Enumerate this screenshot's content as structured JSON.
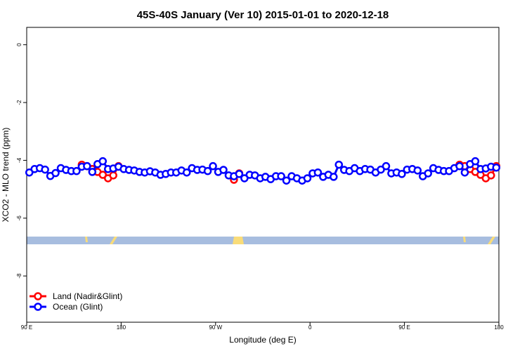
{
  "chart_data": {
    "type": "line",
    "title": "45S-40S January (Ver 10)   2015-01-01 to 2020-12-18",
    "x_label": "Longitude (deg E)",
    "y_label": "XCO2 - MLO trend (ppm)",
    "xlim": [
      90,
      540
    ],
    "ylim": [
      -9.6,
      0.6
    ],
    "xticks": [
      {
        "value": 90,
        "label": "90 E"
      },
      {
        "value": 180,
        "label": "180"
      },
      {
        "value": 270,
        "label": "90 W"
      },
      {
        "value": 360,
        "label": "0"
      },
      {
        "value": 450,
        "label": "90 E"
      },
      {
        "value": 540,
        "label": "180"
      }
    ],
    "yticks": [
      0,
      -2,
      -4,
      -6,
      -8
    ],
    "legend": "bottom-left",
    "x": [
      92.5,
      97.5,
      102.5,
      107.5,
      112.5,
      117.5,
      122.5,
      127.5,
      132.5,
      137.5,
      142.5,
      147.5,
      152.5,
      157.5,
      162.5,
      167.5,
      172.5,
      177.5,
      182.5,
      187.5,
      192.5,
      197.5,
      202.5,
      207.5,
      212.5,
      217.5,
      222.5,
      227.5,
      232.5,
      237.5,
      242.5,
      247.5,
      252.5,
      257.5,
      262.5,
      267.5,
      272.5,
      277.5,
      282.5,
      287.5,
      292.5,
      297.5,
      302.5,
      307.5,
      312.5,
      317.5,
      322.5,
      327.5,
      332.5,
      337.5,
      342.5,
      347.5,
      352.5,
      357.5,
      362.5,
      367.5,
      372.5,
      377.5,
      382.5,
      387.5,
      392.5,
      397.5,
      402.5,
      407.5,
      412.5,
      417.5,
      422.5,
      427.5,
      432.5,
      437.5,
      442.5,
      447.5,
      452.5,
      457.5,
      462.5,
      467.5,
      472.5,
      477.5,
      482.5,
      487.5,
      492.5,
      497.5,
      502.5,
      507.5,
      512.5,
      517.5,
      522.5,
      527.5,
      532.5,
      537.5
    ],
    "series": [
      {
        "name": "Land (Nadir&Glint)",
        "color": "#ff0000",
        "values": [
          null,
          null,
          null,
          null,
          null,
          null,
          null,
          null,
          null,
          null,
          -4.15,
          -4.2,
          -4.3,
          -4.4,
          -4.5,
          -4.62,
          -4.52,
          -4.2,
          null,
          null,
          null,
          null,
          null,
          null,
          null,
          null,
          null,
          null,
          null,
          null,
          null,
          null,
          null,
          null,
          null,
          null,
          null,
          null,
          null,
          -4.67,
          -4.45,
          null,
          null,
          null,
          null,
          null,
          null,
          null,
          null,
          null,
          null,
          null,
          null,
          null,
          null,
          null,
          null,
          null,
          null,
          null,
          null,
          null,
          null,
          null,
          null,
          null,
          null,
          null,
          null,
          null,
          null,
          null,
          null,
          null,
          null,
          null,
          null,
          null,
          null,
          null,
          null,
          null,
          -4.15,
          -4.2,
          -4.3,
          -4.4,
          -4.5,
          -4.62,
          -4.52,
          -4.2
        ]
      },
      {
        "name": "Ocean (Glint)",
        "color": "#0000ff",
        "values": [
          -4.42,
          -4.3,
          -4.27,
          -4.32,
          -4.54,
          -4.44,
          -4.27,
          -4.33,
          -4.37,
          -4.37,
          -4.22,
          -4.2,
          -4.4,
          -4.13,
          -4.03,
          -4.3,
          -4.28,
          -4.22,
          -4.3,
          -4.33,
          -4.35,
          -4.4,
          -4.42,
          -4.38,
          -4.42,
          -4.5,
          -4.47,
          -4.42,
          -4.42,
          -4.35,
          -4.42,
          -4.27,
          -4.33,
          -4.32,
          -4.37,
          -4.2,
          -4.4,
          -4.33,
          -4.52,
          -4.55,
          -4.47,
          -4.62,
          -4.5,
          -4.52,
          -4.62,
          -4.57,
          -4.65,
          -4.55,
          -4.55,
          -4.7,
          -4.55,
          -4.62,
          -4.7,
          -4.62,
          -4.45,
          -4.42,
          -4.57,
          -4.5,
          -4.57,
          -4.15,
          -4.33,
          -4.37,
          -4.27,
          -4.37,
          -4.3,
          -4.32,
          -4.42,
          -4.32,
          -4.2,
          -4.45,
          -4.42,
          -4.47,
          -4.32,
          -4.3,
          -4.35,
          -4.55,
          -4.45,
          -4.27,
          -4.33,
          -4.37,
          -4.37,
          -4.27,
          -4.2,
          -4.42,
          -4.13,
          -4.03,
          -4.3,
          -4.28,
          -4.22,
          -4.25
        ]
      }
    ]
  }
}
